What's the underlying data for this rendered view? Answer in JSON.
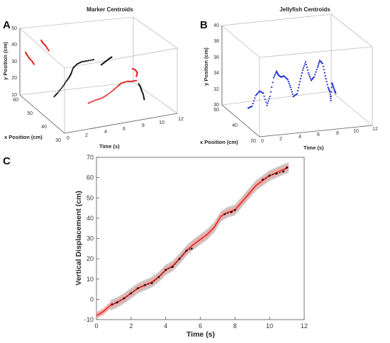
{
  "panels": {
    "a": "A",
    "b": "B",
    "c": "C"
  },
  "colors": {
    "red": "#e0201c",
    "black": "#111111",
    "blue": "#1f2fd0",
    "gray_band": "#bfbfbf",
    "red_band": "#f3a7a3"
  },
  "chart_data": [
    {
      "type": "scatter",
      "title": "Marker Centroids",
      "xlabel": "Time (s)",
      "ylabel": "x Position (cm)",
      "zlabel": "y Position (cm)",
      "time_ticks": [
        "0",
        "2",
        "4",
        "6",
        "8",
        "10",
        "12"
      ],
      "x_ticks": [
        "30",
        "40",
        "50",
        "60"
      ],
      "y_ticks": [
        "10",
        "20",
        "30",
        "40",
        "50"
      ],
      "time_lim": [
        0,
        12
      ],
      "x_lim": [
        30,
        60
      ],
      "y_lim": [
        10,
        50
      ],
      "series": [
        {
          "color": "black",
          "points": [
            [
              0.8,
              42,
              22
            ],
            [
              1.2,
              42,
              24
            ],
            [
              1.7,
              42,
              27
            ],
            [
              2.1,
              42,
              30
            ],
            [
              2.4,
              42,
              32
            ],
            [
              2.6,
              42,
              34
            ],
            [
              2.8,
              42,
              37
            ],
            [
              3.2,
              42,
              39
            ],
            [
              3.7,
              42,
              40
            ],
            [
              4.3,
              42,
              40
            ],
            [
              5.0,
              42,
              40
            ]
          ]
        },
        {
          "color": "black",
          "points": [
            [
              5.5,
              40,
              38
            ],
            [
              5.8,
              40,
              39
            ],
            [
              6.1,
              40,
              40
            ],
            [
              6.4,
              40,
              41
            ],
            [
              6.6,
              40,
              41.5
            ]
          ]
        },
        {
          "color": "black",
          "points": [
            [
              8.2,
              32,
              30
            ],
            [
              8.4,
              32,
              28
            ],
            [
              8.5,
              32,
              26
            ],
            [
              8.7,
              32,
              23
            ],
            [
              8.8,
              32,
              20
            ]
          ]
        },
        {
          "color": "red",
          "points": [
            [
              0.6,
              60,
              35
            ],
            [
              0.8,
              60,
              33
            ],
            [
              1.0,
              60,
              31
            ],
            [
              1.3,
              60,
              29
            ],
            [
              1.5,
              60,
              27
            ]
          ]
        },
        {
          "color": "red",
          "points": [
            [
              1.0,
              52,
              48
            ],
            [
              1.2,
              52,
              46
            ],
            [
              1.5,
              52,
              44
            ],
            [
              1.8,
              52,
              41
            ]
          ]
        },
        {
          "color": "red",
          "points": [
            [
              3.5,
              36,
              20
            ],
            [
              4.2,
              36,
              21
            ],
            [
              4.9,
              36,
              21.5
            ],
            [
              5.5,
              36,
              23
            ],
            [
              6.1,
              36,
              25
            ],
            [
              6.6,
              36,
              27
            ],
            [
              7.0,
              36,
              28.5
            ],
            [
              7.6,
              36,
              29
            ],
            [
              8.1,
              36,
              28.5
            ],
            [
              8.6,
              36,
              28.5
            ]
          ]
        },
        {
          "color": "red",
          "points": [
            [
              8.6,
              36,
              31
            ],
            [
              8.7,
              36,
              33
            ],
            [
              8.5,
              36,
              35
            ],
            [
              8.2,
              36,
              36
            ]
          ]
        }
      ]
    },
    {
      "type": "scatter",
      "title": "Jellyfish Centroids",
      "xlabel": "Time (s)",
      "ylabel": "x Position (cm)",
      "zlabel": "y Position (cm)",
      "time_ticks": [
        "0",
        "2",
        "4",
        "6",
        "8",
        "10",
        "12"
      ],
      "x_ticks": [
        "20",
        "40",
        "60"
      ],
      "y_ticks": [
        "30",
        "32",
        "34",
        "36",
        "38",
        "40"
      ],
      "time_lim": [
        0,
        12
      ],
      "x_lim": [
        20,
        60
      ],
      "y_lim": [
        30,
        40
      ],
      "series": [
        {
          "color": "blue",
          "points": [
            [
              0.8,
              40,
              31.5
            ],
            [
              1.2,
              40,
              31.7
            ],
            [
              1.6,
              40,
              33
            ],
            [
              2.0,
              40,
              33.5
            ],
            [
              2.4,
              40,
              33.2
            ],
            [
              2.8,
              40,
              31.6
            ],
            [
              3.1,
              40,
              32.7
            ],
            [
              3.5,
              40,
              35.0
            ],
            [
              3.8,
              40,
              35.8
            ],
            [
              4.0,
              40,
              35.3
            ],
            [
              4.3,
              40,
              35.0
            ],
            [
              4.6,
              40,
              35.1
            ],
            [
              5.0,
              40,
              34.6
            ],
            [
              5.3,
              40,
              33.6
            ],
            [
              5.6,
              40,
              32.4
            ],
            [
              6.0,
              40,
              32.7
            ],
            [
              6.3,
              40,
              34.2
            ],
            [
              6.6,
              40,
              35.6
            ],
            [
              6.9,
              40,
              36.6
            ],
            [
              7.2,
              40,
              35.2
            ],
            [
              7.5,
              40,
              34.2
            ],
            [
              7.8,
              40,
              34.6
            ],
            [
              8.2,
              40,
              35.8
            ],
            [
              8.4,
              40,
              36.6
            ],
            [
              8.7,
              40,
              36.2
            ],
            [
              9.0,
              40,
              34.6
            ],
            [
              9.3,
              40,
              33.1
            ],
            [
              9.5,
              40,
              32.5
            ],
            [
              9.6,
              40,
              31.4
            ],
            [
              9.7,
              40,
              33.6
            ],
            [
              9.8,
              40,
              33.3
            ],
            [
              10.0,
              40,
              32.6
            ],
            [
              10.1,
              40,
              32.3
            ]
          ]
        }
      ]
    },
    {
      "type": "line",
      "xlabel": "Time (s)",
      "ylabel": "Vertical Displacement (cm)",
      "xlim": [
        0,
        12
      ],
      "ylim": [
        -10,
        70
      ],
      "x_ticks": [
        "0",
        "2",
        "4",
        "6",
        "8",
        "10",
        "12"
      ],
      "y_ticks": [
        "-10",
        "0",
        "10",
        "20",
        "30",
        "40",
        "50",
        "60",
        "70"
      ],
      "grid": false,
      "series": [
        {
          "color": "red",
          "x": [
            0,
            0.4,
            0.8,
            1.2,
            1.6,
            2.0,
            2.4,
            2.8,
            3.2,
            3.6,
            4.0,
            4.4,
            4.8,
            5.2,
            5.6,
            6.0,
            6.4,
            6.8,
            7.2,
            7.6,
            8.0,
            8.4,
            8.8,
            9.2,
            9.6,
            10.0,
            10.4,
            10.8,
            11.1
          ],
          "y": [
            -8,
            -6,
            -3,
            -1.5,
            0.5,
            3,
            5.5,
            7,
            8.5,
            11,
            14.5,
            16.5,
            20,
            24,
            27,
            29.5,
            32,
            35.5,
            41,
            43,
            44,
            48,
            52,
            56,
            58.5,
            61,
            62.5,
            64,
            65
          ]
        },
        {
          "color": "black",
          "x": [
            0.9,
            1.2,
            1.6,
            2.0,
            2.4,
            2.8,
            3.2,
            3.6,
            4.0,
            4.4,
            4.8,
            5.2,
            5.5,
            7.4,
            7.8,
            8.0,
            9.6,
            10.0,
            10.4,
            10.8,
            11.0
          ],
          "y": [
            -2.5,
            -1.5,
            0.5,
            3,
            5.5,
            7,
            8,
            11,
            14.5,
            16,
            20,
            24,
            25,
            42,
            43,
            44,
            59,
            61,
            62,
            63,
            65
          ]
        }
      ]
    }
  ]
}
